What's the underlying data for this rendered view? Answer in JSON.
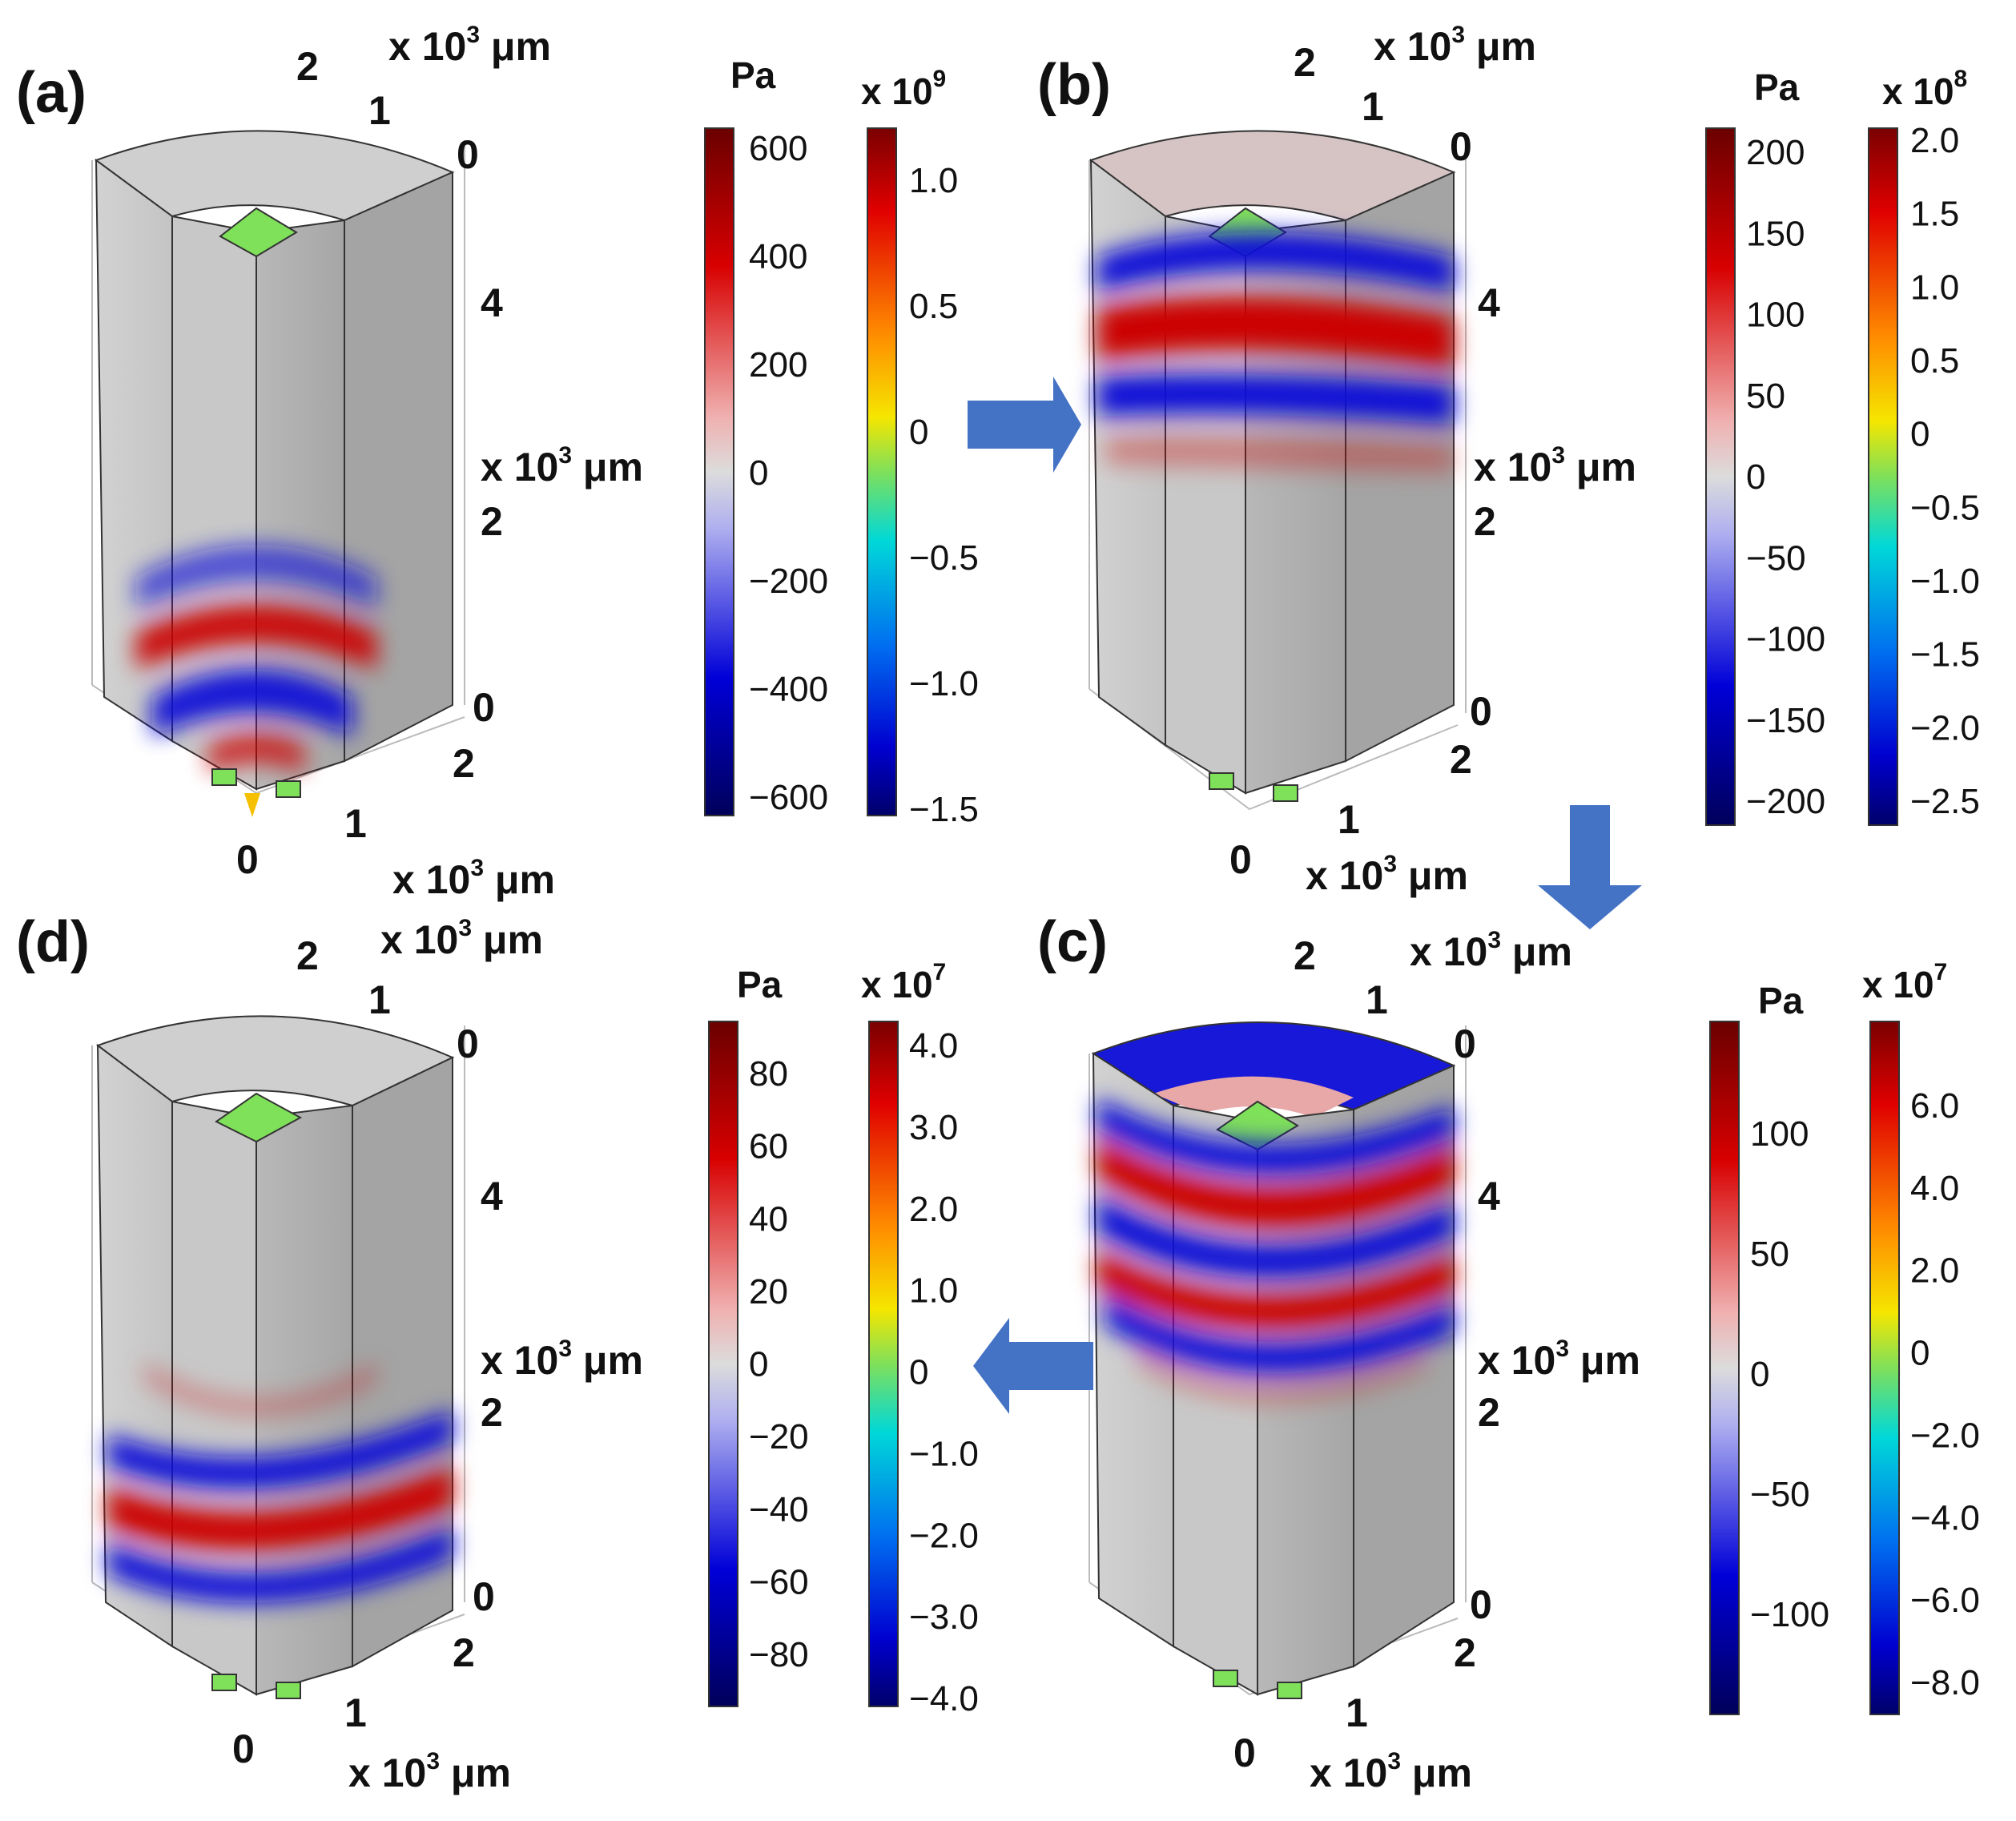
{
  "unit_label": "x 10",
  "unit_exp": "3",
  "unit_suffix": " μm",
  "pa_label": "Pa",
  "panels": {
    "a": {
      "label": "(a)",
      "axis_top_ticks": [
        "2",
        "1",
        "0"
      ],
      "axis_side_ticks": [
        "4",
        "2",
        "0"
      ],
      "axis_bottom_ticks": [
        "2",
        "1",
        "0"
      ],
      "pa_ticks": [
        "600",
        "400",
        "200",
        "0",
        "−200",
        "−400",
        "−600"
      ],
      "scale_header": "x 10",
      "scale_exp": "9",
      "scale_ticks": [
        "1.0",
        "0.5",
        "0",
        "−0.5",
        "−1.0",
        "−1.5"
      ]
    },
    "b": {
      "label": "(b)",
      "axis_top_ticks": [
        "2",
        "1",
        "0"
      ],
      "axis_side_ticks": [
        "4",
        "2",
        "0"
      ],
      "axis_bottom_ticks": [
        "2",
        "1",
        "0"
      ],
      "pa_ticks": [
        "200",
        "150",
        "100",
        "50",
        "0",
        "−50",
        "−100",
        "−150",
        "−200"
      ],
      "scale_header": "x 10",
      "scale_exp": "8",
      "scale_ticks": [
        "2.0",
        "1.5",
        "1.0",
        "0.5",
        "0",
        "−0.5",
        "−1.0",
        "−1.5",
        "−2.0",
        "−2.5"
      ]
    },
    "c": {
      "label": "(c)",
      "axis_top_ticks": [
        "2",
        "1",
        "0"
      ],
      "axis_side_ticks": [
        "4",
        "2",
        "0"
      ],
      "axis_bottom_ticks": [
        "2",
        "1",
        "0"
      ],
      "pa_ticks": [
        "100",
        "50",
        "0",
        "−50",
        "−100"
      ],
      "scale_header": "x 10",
      "scale_exp": "7",
      "scale_ticks": [
        "6.0",
        "4.0",
        "2.0",
        "0",
        "−2.0",
        "−4.0",
        "−6.0",
        "−8.0"
      ]
    },
    "d": {
      "label": "(d)",
      "axis_top_ticks": [
        "2",
        "1",
        "0"
      ],
      "axis_side_ticks": [
        "4",
        "2",
        "0"
      ],
      "axis_bottom_ticks": [
        "2",
        "1",
        "0"
      ],
      "pa_ticks": [
        "80",
        "60",
        "40",
        "20",
        "0",
        "−20",
        "−40",
        "−60",
        "−80"
      ],
      "scale_header": "x 10",
      "scale_exp": "7",
      "scale_ticks": [
        "4.0",
        "3.0",
        "2.0",
        "1.0",
        "0",
        "−1.0",
        "−2.0",
        "−3.0",
        "−4.0"
      ]
    }
  },
  "colors": {
    "body": "#c9c9c9",
    "red": "#cc0000",
    "blue": "#1010d8",
    "arrow": "#4472c4",
    "source": "#7fe05a"
  }
}
